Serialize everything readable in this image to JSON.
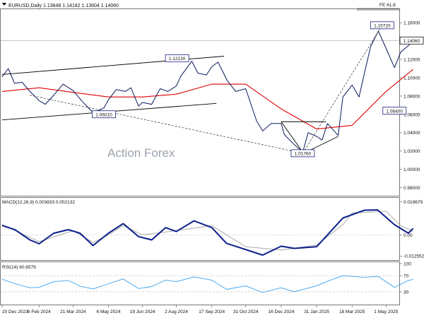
{
  "header": {
    "symbol_line": "EURUSD,Daily  1.13648 1.14182 1.13604 1.14060",
    "corner_label": "FE 61.8"
  },
  "watermark": "Action Forex",
  "colors": {
    "price": "#0a1a5c",
    "ma": "#e00000",
    "macd": "#0d1f8c",
    "signal": "#aaaaaa",
    "rsi": "#3aa0ef",
    "trend": "#000000",
    "channel": "#333333",
    "grid": "#c9c9c9"
  },
  "chart_data": [
    {
      "type": "line",
      "panel": "price",
      "title": "EURUSD,Daily",
      "ohlc": {
        "open": 1.13648,
        "high": 1.14182,
        "low": 1.13604,
        "close": 1.1406
      },
      "x_ticks": [
        "20 Dec 2023",
        "6 Feb 2024",
        "21 Mar 2024",
        "6 May 2024",
        "19 Jun 2024",
        "2 Aug 2024",
        "17 Sep 2024",
        "31 Oct 2024",
        "16 Dec 2024",
        "31 Jan 2025",
        "18 Mar 2025",
        "1 May 2025"
      ],
      "y_ticks": [
        "1.16000",
        "1.14000",
        "1.12000",
        "1.10000",
        "1.08000",
        "1.06000",
        "1.04000",
        "1.02000",
        "1.00000",
        "0.98000"
      ],
      "ylim": [
        0.972,
        1.174
      ],
      "current_price": "1.14060",
      "annotations": [
        {
          "text": "1.15720",
          "x": "26 Apr 2025",
          "y": 1.1572
        },
        {
          "text": "1.12130",
          "x": "3 Aug 2024",
          "y": 1.1213
        },
        {
          "text": "1.06010",
          "x": "30 Apr 2024",
          "y": 1.0601
        },
        {
          "text": "1.06400",
          "x": "12 May 2025",
          "y": 1.064
        },
        {
          "text": "1.01760",
          "x": "13 Jan 2025",
          "y": 1.0176
        }
      ],
      "series": [
        {
          "role": "price",
          "points": [
            [
              "20 Dec 2023",
              1.101
            ],
            [
              "28 Dec 2023",
              1.11
            ],
            [
              "5 Jan 2024",
              1.094
            ],
            [
              "15 Jan 2024",
              1.095
            ],
            [
              "25 Jan 2024",
              1.085
            ],
            [
              "6 Feb 2024",
              1.075
            ],
            [
              "14 Feb 2024",
              1.071
            ],
            [
              "25 Feb 2024",
              1.081
            ],
            [
              "8 Mar 2024",
              1.093
            ],
            [
              "21 Mar 2024",
              1.086
            ],
            [
              "2 Apr 2024",
              1.074
            ],
            [
              "16 Apr 2024",
              1.062
            ],
            [
              "30 Apr 2024",
              1.067
            ],
            [
              "6 May 2024",
              1.076
            ],
            [
              "16 May 2024",
              1.087
            ],
            [
              "28 May 2024",
              1.085
            ],
            [
              "4 Jun 2024",
              1.089
            ],
            [
              "14 Jun 2024",
              1.069
            ],
            [
              "19 Jun 2024",
              1.073
            ],
            [
              "1 Jul 2024",
              1.071
            ],
            [
              "12 Jul 2024",
              1.088
            ],
            [
              "22 Jul 2024",
              1.085
            ],
            [
              "2 Aug 2024",
              1.091
            ],
            [
              "8 Aug 2024",
              1.102
            ],
            [
              "22 Aug 2024",
              1.118
            ],
            [
              "30 Aug 2024",
              1.105
            ],
            [
              "10 Sep 2024",
              1.103
            ],
            [
              "17 Sep 2024",
              1.112
            ],
            [
              "25 Sep 2024",
              1.117
            ],
            [
              "7 Oct 2024",
              1.097
            ],
            [
              "18 Oct 2024",
              1.085
            ],
            [
              "31 Oct 2024",
              1.088
            ],
            [
              "6 Nov 2024",
              1.073
            ],
            [
              "14 Nov 2024",
              1.053
            ],
            [
              "22 Nov 2024",
              1.042
            ],
            [
              "3 Dec 2024",
              1.05
            ],
            [
              "16 Dec 2024",
              1.05
            ],
            [
              "20 Dec 2024",
              1.038
            ],
            [
              "2 Jan 2025",
              1.027
            ],
            [
              "13 Jan 2025",
              1.019
            ],
            [
              "20 Jan 2025",
              1.04
            ],
            [
              "31 Jan 2025",
              1.036
            ],
            [
              "7 Feb 2025",
              1.032
            ],
            [
              "14 Feb 2025",
              1.05
            ],
            [
              "28 Feb 2025",
              1.037
            ],
            [
              "6 Mar 2025",
              1.079
            ],
            [
              "18 Mar 2025",
              1.092
            ],
            [
              "27 Mar 2025",
              1.079
            ],
            [
              "3 Apr 2025",
              1.105
            ],
            [
              "11 Apr 2025",
              1.134
            ],
            [
              "21 Apr 2025",
              1.151
            ],
            [
              "1 May 2025",
              1.132
            ],
            [
              "12 May 2025",
              1.111
            ],
            [
              "20 May 2025",
              1.128
            ],
            [
              "30 May 2025",
              1.135
            ],
            [
              "5 Jun 2025",
              1.1406
            ]
          ]
        },
        {
          "role": "moving-average",
          "points": [
            [
              "20 Dec 2023",
              1.085
            ],
            [
              "6 Feb 2024",
              1.089
            ],
            [
              "21 Mar 2024",
              1.084
            ],
            [
              "6 May 2024",
              1.079
            ],
            [
              "19 Jun 2024",
              1.079
            ],
            [
              "2 Aug 2024",
              1.082
            ],
            [
              "17 Sep 2024",
              1.093
            ],
            [
              "31 Oct 2024",
              1.093
            ],
            [
              "16 Dec 2024",
              1.066
            ],
            [
              "31 Jan 2025",
              1.044
            ],
            [
              "18 Mar 2025",
              1.048
            ],
            [
              "1 May 2025",
              1.085
            ],
            [
              "5 Jun 2025",
              1.109
            ]
          ]
        }
      ]
    },
    {
      "type": "line",
      "panel": "macd",
      "title": "MACD(12,26,9) 0.003833 0.002132",
      "y_ticks": [
        "0.019679",
        "0.00",
        "-0.012552"
      ],
      "ylim": [
        -0.0145,
        0.0215
      ],
      "series": [
        {
          "role": "macd",
          "points": [
            [
              "20 Dec 2023",
              0.0056
            ],
            [
              "6 Jan 2024",
              0.003
            ],
            [
              "25 Jan 2024",
              -0.003
            ],
            [
              "6 Feb 2024",
              -0.0053
            ],
            [
              "25 Feb 2024",
              0.001
            ],
            [
              "15 Mar 2024",
              0.0031
            ],
            [
              "30 Mar 2024",
              0.001
            ],
            [
              "16 Apr 2024",
              -0.0063
            ],
            [
              "6 May 2024",
              0.001
            ],
            [
              "25 May 2024",
              0.0067
            ],
            [
              "14 Jun 2024",
              -0.001
            ],
            [
              "1 Jul 2024",
              -0.003
            ],
            [
              "19 Jul 2024",
              0.0043
            ],
            [
              "2 Aug 2024",
              0.002
            ],
            [
              "25 Aug 2024",
              0.0083
            ],
            [
              "17 Sep 2024",
              0.0043
            ],
            [
              "6 Oct 2024",
              -0.005
            ],
            [
              "22 Nov 2024",
              -0.012
            ],
            [
              "16 Dec 2024",
              -0.0067
            ],
            [
              "2 Jan 2025",
              -0.008
            ],
            [
              "31 Jan 2025",
              -0.007
            ],
            [
              "14 Feb 2025",
              0.0
            ],
            [
              "6 Mar 2025",
              0.01
            ],
            [
              "3 Apr 2025",
              0.0146
            ],
            [
              "20 Apr 2025",
              0.0148
            ],
            [
              "12 May 2025",
              0.006
            ],
            [
              "30 May 2025",
              0.001
            ],
            [
              "5 Jun 2025",
              0.0038
            ]
          ]
        },
        {
          "role": "signal",
          "points": [
            [
              "20 Dec 2023",
              0.006
            ],
            [
              "6 Feb 2024",
              -0.004
            ],
            [
              "21 Mar 2024",
              0.0025
            ],
            [
              "16 Apr 2024",
              -0.0045
            ],
            [
              "6 May 2024",
              0.0
            ],
            [
              "25 May 2024",
              0.0055
            ],
            [
              "19 Jun 2024",
              0.0
            ],
            [
              "2 Aug 2024",
              0.0025
            ],
            [
              "17 Sep 2024",
              0.0055
            ],
            [
              "31 Oct 2024",
              -0.007
            ],
            [
              "16 Dec 2024",
              -0.009
            ],
            [
              "31 Jan 2025",
              -0.006
            ],
            [
              "6 Mar 2025",
              0.006
            ],
            [
              "18 Mar 2025",
              0.013
            ],
            [
              "1 May 2025",
              0.014
            ],
            [
              "20 May 2025",
              0.0055
            ],
            [
              "5 Jun 2025",
              0.0021
            ]
          ]
        }
      ]
    },
    {
      "type": "line",
      "panel": "rsi",
      "title": "RSI(14) 60.6579",
      "y_ticks": [
        "100",
        "70",
        "30",
        "0"
      ],
      "ylim": [
        0,
        100
      ],
      "series": [
        {
          "role": "rsi",
          "points": [
            [
              "20 Dec 2023",
              61
            ],
            [
              "6 Jan 2024",
              50
            ],
            [
              "25 Jan 2024",
              40
            ],
            [
              "6 Feb 2024",
              41
            ],
            [
              "25 Feb 2024",
              55
            ],
            [
              "15 Mar 2024",
              58
            ],
            [
              "30 Mar 2024",
              44
            ],
            [
              "16 Apr 2024",
              37
            ],
            [
              "6 May 2024",
              50
            ],
            [
              "25 May 2024",
              62
            ],
            [
              "14 Jun 2024",
              38
            ],
            [
              "1 Jul 2024",
              43
            ],
            [
              "19 Jul 2024",
              59
            ],
            [
              "2 Aug 2024",
              55
            ],
            [
              "25 Aug 2024",
              67
            ],
            [
              "17 Sep 2024",
              59
            ],
            [
              "6 Oct 2024",
              36
            ],
            [
              "31 Oct 2024",
              45
            ],
            [
              "22 Nov 2024",
              28
            ],
            [
              "16 Dec 2024",
              40
            ],
            [
              "2 Jan 2025",
              30
            ],
            [
              "31 Jan 2025",
              45
            ],
            [
              "14 Feb 2025",
              56
            ],
            [
              "6 Mar 2025",
              70
            ],
            [
              "3 Apr 2025",
              66
            ],
            [
              "21 Apr 2025",
              68
            ],
            [
              "12 May 2025",
              41
            ],
            [
              "30 May 2025",
              58
            ],
            [
              "5 Jun 2025",
              60.7
            ]
          ]
        }
      ]
    }
  ]
}
